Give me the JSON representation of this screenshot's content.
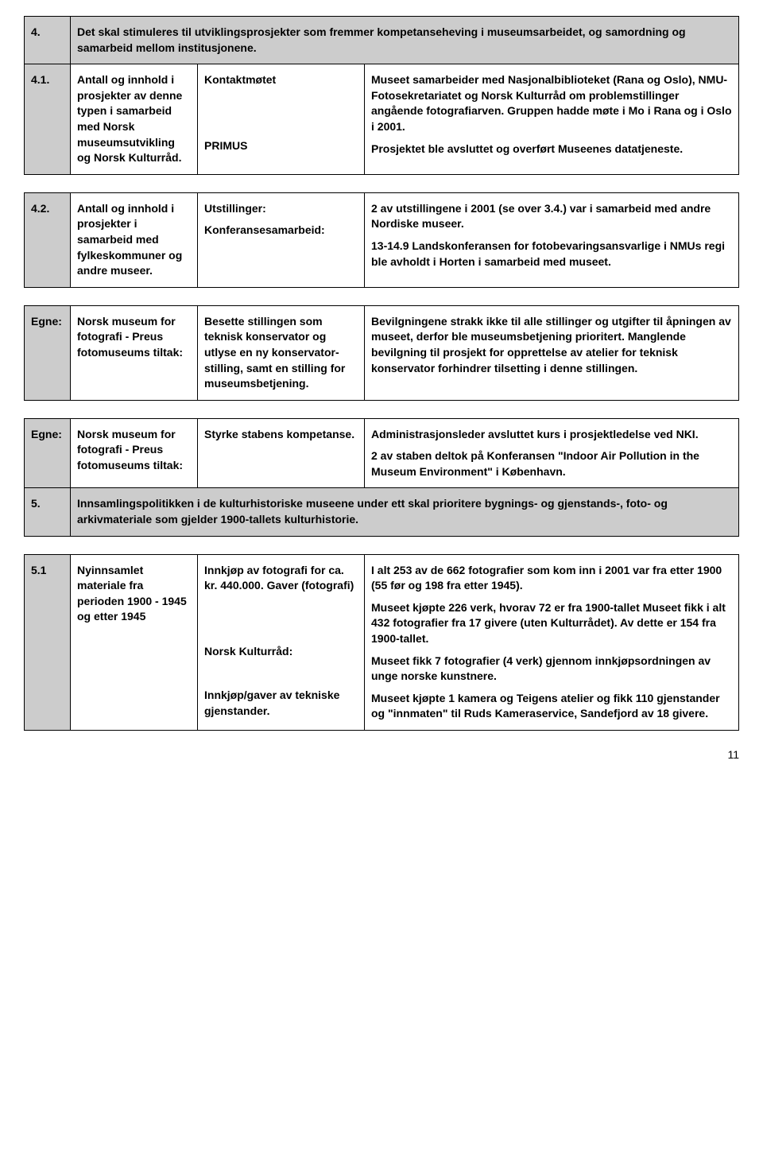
{
  "colors": {
    "headerBg": "#cccccc",
    "border": "#000000",
    "text": "#000000",
    "pageBg": "#ffffff"
  },
  "typography": {
    "fontFamily": "Segoe UI, Tahoma, Arial, sans-serif",
    "bodySizePt": 11,
    "headerWeight": "bold"
  },
  "layout": {
    "columnWidths": [
      "58px",
      "160px",
      "210px",
      "auto"
    ],
    "cellPadding": "10px 8px",
    "tableGapPx": 22
  },
  "pageNumber": "11",
  "tables": [
    {
      "rows": [
        {
          "num": "4.",
          "colspan": 3,
          "isHeader": true,
          "text": "Det skal stimuleres til utviklingsprosjekter som fremmer kompetanseheving i museumsarbeidet, og samordning og samarbeid mellom institusjonene."
        },
        {
          "num": "4.1.",
          "c2": "Antall og innhold i prosjekter av denne typen i samarbeid med Norsk museumsutvikling og Norsk Kulturråd.",
          "c3": [
            "Kontaktmøtet",
            "",
            "",
            "PRIMUS"
          ],
          "c4": [
            "Museet samarbeider med Nasjonalbiblioteket (Rana og Oslo), NMU- Fotosekretariatet og Norsk Kulturråd om problemstillinger angående fotografiarven. Gruppen hadde møte i Mo i Rana og i Oslo i 2001.",
            "Prosjektet ble avsluttet og overført Museenes datatjeneste."
          ]
        }
      ]
    },
    {
      "rows": [
        {
          "num": "4.2.",
          "c2": "Antall og innhold i prosjekter i samarbeid med fylkeskommuner og andre museer.",
          "c3": [
            "Utstillinger:",
            "Konferansesamarbeid:"
          ],
          "c4": [
            "2 av utstillingene i 2001 (se over 3.4.) var i samarbeid med andre Nordiske museer.",
            "13-14.9 Landskonferansen for fotobevaringsansvarlige i NMUs regi ble avholdt i Horten i samarbeid med museet."
          ]
        }
      ]
    },
    {
      "rows": [
        {
          "num": "Egne:",
          "c2": "Norsk museum for fotografi - Preus fotomuseums tiltak:",
          "c3": [
            "Besette stillingen som teknisk konservator og utlyse en ny konservator-stilling, samt en stilling for museumsbetjening."
          ],
          "c4": [
            "Bevilgningene strakk ikke til alle stillinger og utgifter til åpningen av museet, derfor ble museumsbetjening prioritert. Manglende bevilgning til prosjekt for opprettelse av atelier for teknisk konservator forhindrer tilsetting i denne stillingen."
          ]
        }
      ]
    },
    {
      "rows": [
        {
          "num": "Egne:",
          "c2": "Norsk museum for fotografi - Preus fotomuseums tiltak:",
          "c3": [
            "Styrke stabens kompetanse."
          ],
          "c4": [
            "Administrasjonsleder avsluttet kurs i prosjektledelse ved NKI.",
            "2 av staben deltok på Konferansen \"Indoor Air Pollution in the Museum Environment\" i København."
          ]
        },
        {
          "num": "5.",
          "colspan": 3,
          "isHeader": true,
          "text": "Innsamlingspolitikken i de kulturhistoriske museene under ett skal prioritere bygnings- og gjenstands-, foto- og arkivmateriale som gjelder 1900-tallets kulturhistorie."
        }
      ]
    },
    {
      "rows": [
        {
          "num": "5.1",
          "c2": "Nyinnsamlet materiale fra perioden 1900 - 1945 og etter 1945",
          "c3": [
            "Innkjøp av fotografi for ca. kr. 440.000. Gaver (fotografi)",
            "",
            "",
            "Norsk Kulturråd:",
            "",
            "Innkjøp/gaver av tekniske gjenstander."
          ],
          "c4": [
            "I alt 253 av de 662 fotografier som kom inn i 2001 var fra etter 1900 (55 før og 198 fra etter 1945).",
            "Museet kjøpte 226 verk, hvorav 72 er fra 1900-tallet Museet fikk i alt 432 fotografier fra 17 givere (uten Kulturrådet). Av dette er 154 fra 1900-tallet.",
            "Museet fikk 7 fotografier (4 verk) gjennom innkjøpsordningen av unge norske kunstnere.",
            "Museet kjøpte 1 kamera og Teigens atelier og fikk 110 gjenstander og \"innmaten\" til Ruds Kameraservice, Sandefjord av 18 givere."
          ]
        }
      ]
    }
  ]
}
